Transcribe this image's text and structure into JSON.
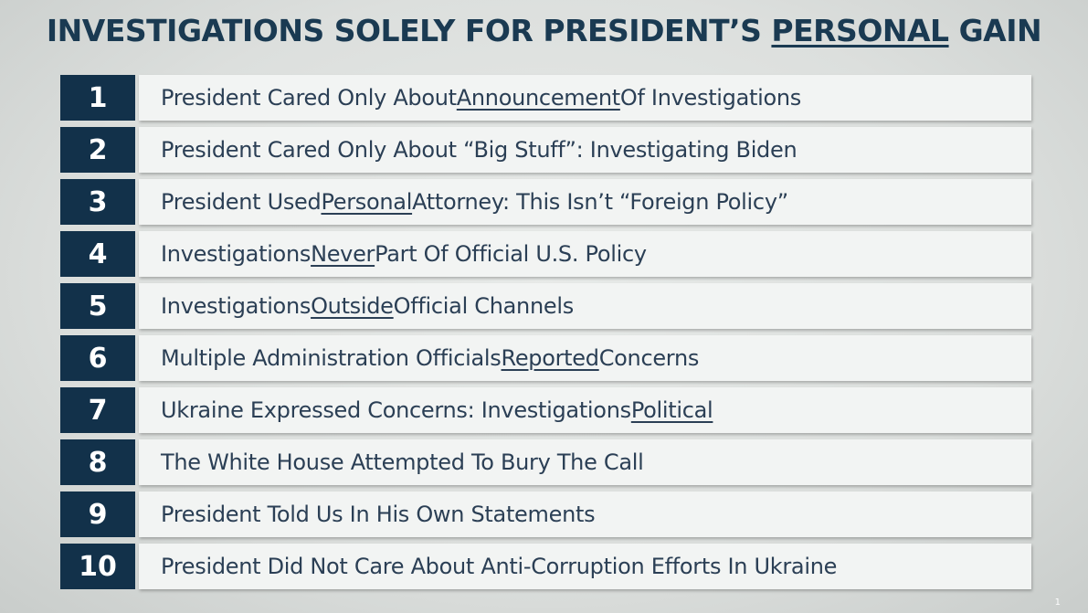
{
  "slide": {
    "title_pre": "INVESTIGATIONS SOLELY FOR PRESIDENT’S ",
    "title_underlined": "PERSONAL",
    "title_post": " GAIN",
    "page_number": "1"
  },
  "items": [
    {
      "num": "1",
      "pre": "President Cared Only About ",
      "u": "Announcement",
      "post": " Of Investigations"
    },
    {
      "num": "2",
      "pre": "President Cared Only About “Big Stuff”: Investigating Biden",
      "u": "",
      "post": ""
    },
    {
      "num": "3",
      "pre": "President Used ",
      "u": "Personal",
      "post": " Attorney: This Isn’t “Foreign Policy”"
    },
    {
      "num": "4",
      "pre": "Investigations ",
      "u": "Never",
      "post": " Part Of Official U.S. Policy"
    },
    {
      "num": "5",
      "pre": "Investigations ",
      "u": "Outside",
      "post": " Official Channels"
    },
    {
      "num": "6",
      "pre": "Multiple Administration Officials ",
      "u": "Reported",
      "post": " Concerns"
    },
    {
      "num": "7",
      "pre": "Ukraine Expressed Concerns: Investigations ",
      "u": "Political",
      "post": ""
    },
    {
      "num": "8",
      "pre": "The White House Attempted To Bury The Call",
      "u": "",
      "post": ""
    },
    {
      "num": "9",
      "pre": "President Told Us In His Own Statements",
      "u": "",
      "post": ""
    },
    {
      "num": "10",
      "pre": "President Did Not Care About Anti-Corruption Efforts In Ukraine",
      "u": "",
      "post": ""
    }
  ]
}
